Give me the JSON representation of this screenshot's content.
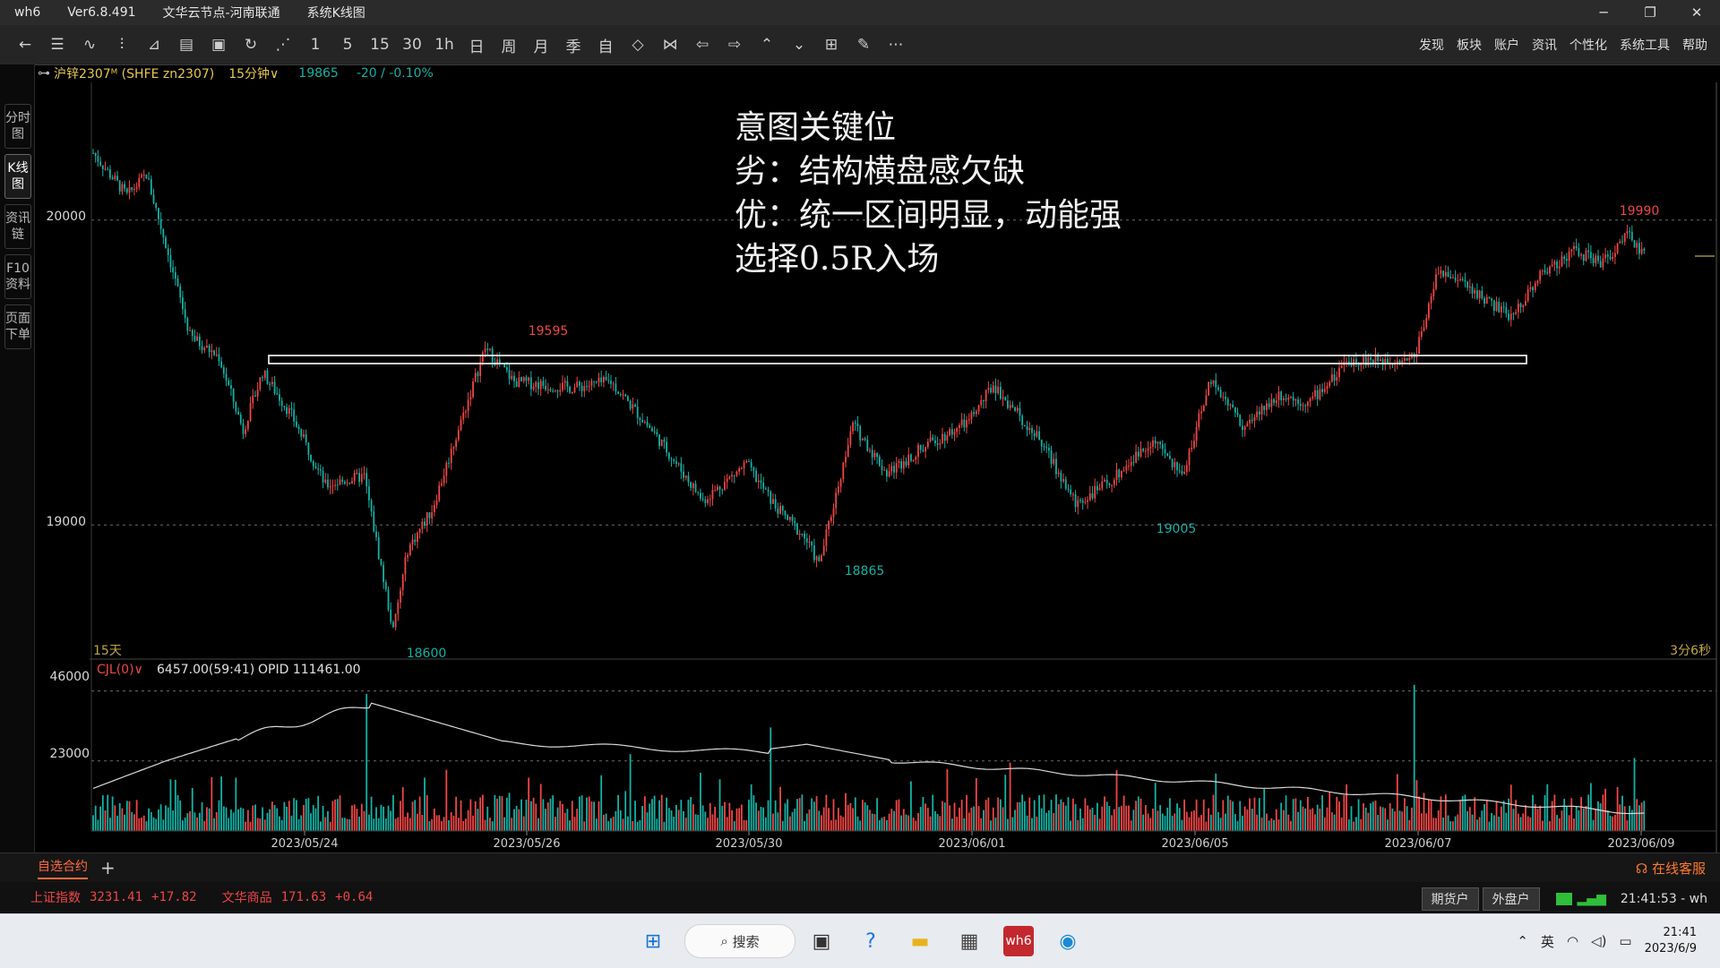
{
  "titlebar": {
    "app": "wh6",
    "version": "Ver6.8.491",
    "node": "文华云节点-河南联通",
    "view": "系统K线图"
  },
  "window_controls": {
    "minimize": "─",
    "restore": "❐",
    "close": "✕"
  },
  "toolbar": {
    "buttons": [
      "←",
      "☰",
      "∿",
      "⫶",
      "⊿",
      "▤",
      "▣",
      "↻",
      "⋰",
      "1",
      "5",
      "15",
      "30",
      "1h",
      "日",
      "周",
      "月",
      "季",
      "自",
      "◇",
      "⋈",
      "⇦",
      "⇨",
      "⌃",
      "⌄",
      "⊞",
      "✎",
      "⋯"
    ],
    "menu": [
      "发现",
      "板块",
      "账户",
      "资讯",
      "个性化",
      "系统工具",
      "帮助"
    ]
  },
  "sidebar": {
    "tabs": [
      "分时图",
      "K线图",
      "资讯链",
      "F10资料",
      "页面下单"
    ],
    "active": 1
  },
  "infobar": {
    "symbol": "沪锌2307ᴹ (SHFE zn2307)",
    "period": "15分钟∨",
    "price": "19865",
    "change": "-20 / -0.10%"
  },
  "annotation": {
    "lines": [
      "意图关键位",
      "劣：结构横盘感欠缺",
      "优：统一区间明显，动能强",
      "选择0.5R入场"
    ]
  },
  "chart_data": {
    "type": "candlestick",
    "price_axis": {
      "ticks": [
        20000,
        19000
      ],
      "min": 18560,
      "max": 20440
    },
    "labels": {
      "high_left": "19595",
      "low_left": "18600",
      "mid_low1": "18865",
      "mid_low2": "19005",
      "high_right": "19990"
    },
    "key_points": [
      {
        "x": 0,
        "y": 20220
      },
      {
        "x": 14,
        "y": 20080
      },
      {
        "x": 22,
        "y": 20150
      },
      {
        "x": 30,
        "y": 19920
      },
      {
        "x": 40,
        "y": 19620
      },
      {
        "x": 52,
        "y": 19550
      },
      {
        "x": 62,
        "y": 19310
      },
      {
        "x": 70,
        "y": 19500
      },
      {
        "x": 82,
        "y": 19360
      },
      {
        "x": 96,
        "y": 19130
      },
      {
        "x": 112,
        "y": 19160
      },
      {
        "x": 124,
        "y": 18650
      },
      {
        "x": 130,
        "y": 18920
      },
      {
        "x": 140,
        "y": 19050
      },
      {
        "x": 162,
        "y": 19580
      },
      {
        "x": 174,
        "y": 19470
      },
      {
        "x": 198,
        "y": 19450
      },
      {
        "x": 214,
        "y": 19470
      },
      {
        "x": 232,
        "y": 19300
      },
      {
        "x": 252,
        "y": 19080
      },
      {
        "x": 270,
        "y": 19200
      },
      {
        "x": 282,
        "y": 19060
      },
      {
        "x": 294,
        "y": 18960
      },
      {
        "x": 300,
        "y": 18870
      },
      {
        "x": 314,
        "y": 19330
      },
      {
        "x": 328,
        "y": 19170
      },
      {
        "x": 344,
        "y": 19260
      },
      {
        "x": 362,
        "y": 19340
      },
      {
        "x": 372,
        "y": 19460
      },
      {
        "x": 392,
        "y": 19270
      },
      {
        "x": 406,
        "y": 19070
      },
      {
        "x": 420,
        "y": 19140
      },
      {
        "x": 438,
        "y": 19280
      },
      {
        "x": 450,
        "y": 19160
      },
      {
        "x": 462,
        "y": 19480
      },
      {
        "x": 476,
        "y": 19320
      },
      {
        "x": 490,
        "y": 19430
      },
      {
        "x": 502,
        "y": 19400
      },
      {
        "x": 520,
        "y": 19540
      },
      {
        "x": 532,
        "y": 19540
      },
      {
        "x": 546,
        "y": 19550
      },
      {
        "x": 556,
        "y": 19840
      },
      {
        "x": 572,
        "y": 19760
      },
      {
        "x": 586,
        "y": 19680
      },
      {
        "x": 598,
        "y": 19820
      },
      {
        "x": 612,
        "y": 19900
      },
      {
        "x": 624,
        "y": 19860
      },
      {
        "x": 634,
        "y": 19950
      },
      {
        "x": 642,
        "y": 19880
      }
    ],
    "ranges": {
      "time": "15天",
      "countdown": "3分6秒"
    },
    "volume_axis": {
      "ticks": [
        46000,
        23000
      ],
      "max": 50000
    },
    "volume_legend": {
      "name": "CJL(0)∨",
      "value": "6457.00(59:41)",
      "opid": "OPID 111461.00"
    },
    "dates": [
      "2023/05/24",
      "2023/05/26",
      "2023/05/30",
      "2023/06/01",
      "2023/06/05",
      "2023/06/07",
      "2023/06/09"
    ],
    "colors": {
      "up": "#f04646",
      "down": "#13b2a5",
      "grid": "#6b6b6b",
      "zone": "#ffffff",
      "oi": "#d8d8d8"
    }
  },
  "bottombar": {
    "tab": "自选合约",
    "add": "+",
    "service": "在线客服"
  },
  "statusbar": {
    "index1_name": "上证指数",
    "index1_value": "3231.41",
    "index1_change": "+17.82",
    "index2_name": "文华商品",
    "index2_value": "171.63",
    "index2_change": "+0.64",
    "btn1": "期货户",
    "btn2": "外盘户",
    "time": "21:41:53 - wh"
  },
  "taskbar": {
    "search": "搜索",
    "tray_time": "21:41",
    "tray_date": "2023/6/9",
    "ime": "英"
  }
}
